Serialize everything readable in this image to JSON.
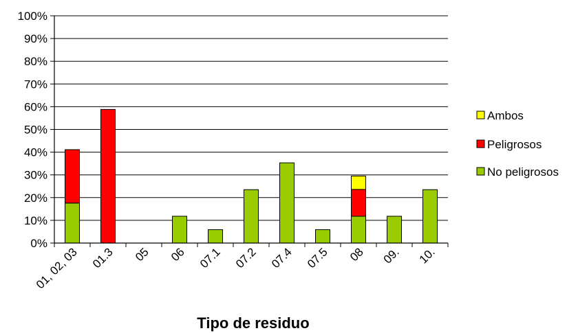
{
  "chart_data": {
    "type": "bar",
    "stacked": true,
    "categories": [
      "01, 02, 03",
      "01.3",
      "05",
      "06",
      "07.1",
      "07.2",
      "07.4",
      "07.5",
      "08",
      "09.",
      "10."
    ],
    "series": [
      {
        "name": "No peligrosos",
        "color": "#99cc00",
        "values": [
          17.6,
          0,
          0,
          11.8,
          5.9,
          23.5,
          35.3,
          5.9,
          11.8,
          11.8,
          23.5
        ]
      },
      {
        "name": "Peligrosos",
        "color": "#ff0000",
        "values": [
          23.5,
          58.8,
          0,
          0,
          0,
          0,
          0,
          0,
          11.8,
          0,
          0
        ]
      },
      {
        "name": "Ambos",
        "color": "#ffff00",
        "values": [
          0,
          0,
          0,
          0,
          0,
          0,
          0,
          0,
          5.9,
          0,
          0
        ]
      }
    ],
    "legend_order": [
      "Ambos",
      "Peligrosos",
      "No peligrosos"
    ],
    "y_ticks": [
      "0%",
      "10%",
      "20%",
      "30%",
      "40%",
      "50%",
      "60%",
      "70%",
      "80%",
      "90%",
      "100%"
    ],
    "ylim": [
      0,
      100
    ],
    "xlabel": "Tipo de residuo",
    "ylabel": "",
    "title": "",
    "grid": true,
    "legend_position": "right"
  }
}
